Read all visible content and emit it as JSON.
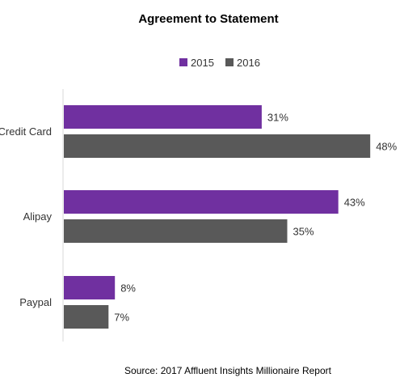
{
  "chart_data": {
    "type": "bar",
    "orientation": "horizontal",
    "title": "Agreement to Statement",
    "categories": [
      "Credit Card",
      "Alipay",
      "Paypal"
    ],
    "series": [
      {
        "name": "2015",
        "color": "#7030a0",
        "values": [
          31,
          43,
          8
        ],
        "labels": [
          "31%",
          "43%",
          "8%"
        ]
      },
      {
        "name": "2016",
        "color": "#595959",
        "values": [
          48,
          35,
          7
        ],
        "labels": [
          "48%",
          "35%",
          "7%"
        ]
      }
    ],
    "xlim": [
      0,
      50
    ],
    "value_unit": "%",
    "grid": false,
    "legend_position": "top"
  },
  "source": "Source: 2017 Affluent Insights Millionaire Report"
}
